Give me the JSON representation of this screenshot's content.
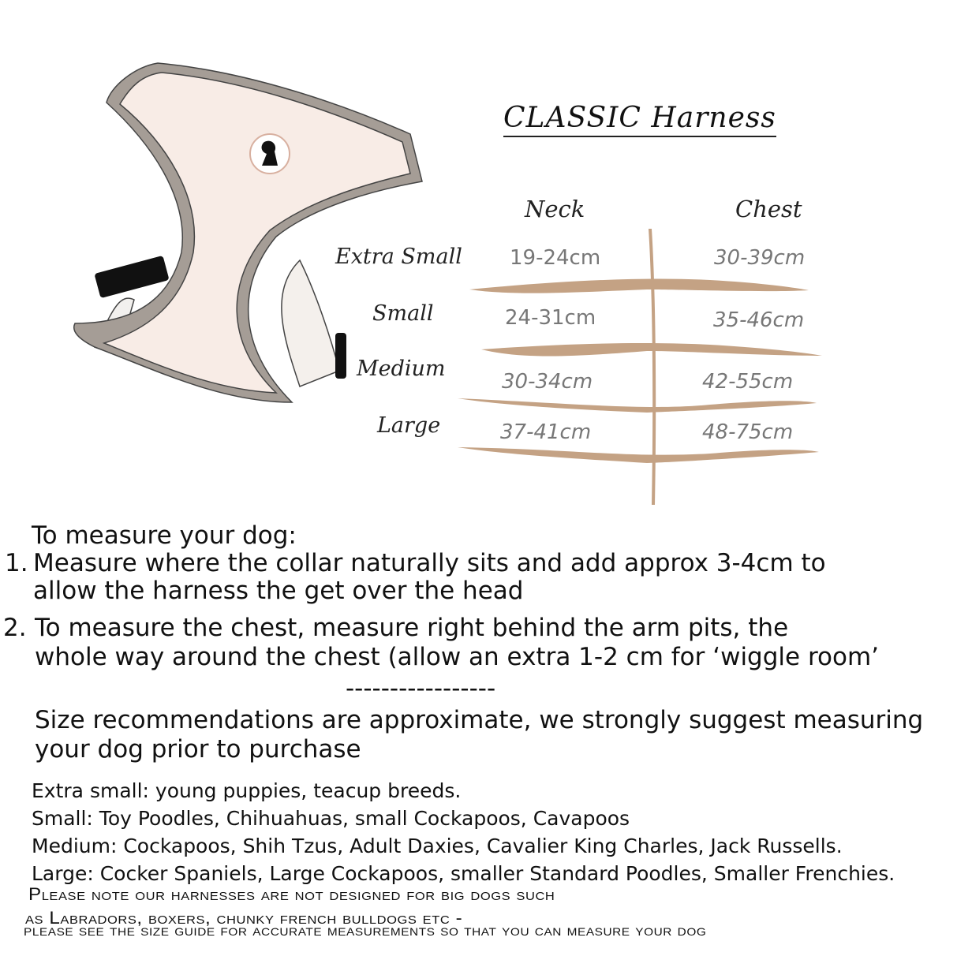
{
  "title": "CLASSIC Harness",
  "table": {
    "headers": [
      "Neck",
      "Chest"
    ],
    "rows": [
      {
        "size": "Extra Small",
        "neck": "19-24cm",
        "chest": "30-39cm"
      },
      {
        "size": "Small",
        "neck": "24-31cm",
        "chest": "35-46cm"
      },
      {
        "size": "Medium",
        "neck": "30-34cm",
        "chest": "42-55cm"
      },
      {
        "size": "Large",
        "neck": "37-41cm",
        "chest": "48-75cm"
      }
    ],
    "line_color": "#c4a284"
  },
  "instructions": {
    "heading": "To measure your dog:",
    "steps": [
      {
        "num": "1.",
        "lines": [
          "Measure where the collar naturally sits and add approx 3-4cm to",
          "allow the harness the get over the head"
        ]
      },
      {
        "num": "2.",
        "lines": [
          "To measure the chest, measure right behind the arm pits, the",
          "whole way around the chest (allow an extra 1-2 cm for ‘wiggle room’"
        ]
      }
    ],
    "divider": "-----------------",
    "disclaimer": [
      "Size recommendations are approximate, we strongly suggest measuring",
      "your dog prior to purchase"
    ]
  },
  "breeds": [
    "Extra small: young puppies, teacup breeds.",
    "Small: Toy Poodles, Chihuahuas, small Cockapoos, Cavapoos",
    "Medium: Cockapoos, Shih Tzus, Adult Daxies, Cavalier King Charles, Jack Russells.",
    "Large: Cocker Spaniels, Large Cockapoos, smaller Standard Poodles, Smaller Frenchies."
  ],
  "note": [
    "Please note our harnesses are not designed for big dogs such",
    "as Labradors, boxers, chunky french bulldogs etc -",
    "please see the size guide for accurate measurements so that you can measure your dog"
  ],
  "colors": {
    "harness_body": "#f8ece6",
    "harness_trim": "#a59d96",
    "buckle": "#111111"
  }
}
